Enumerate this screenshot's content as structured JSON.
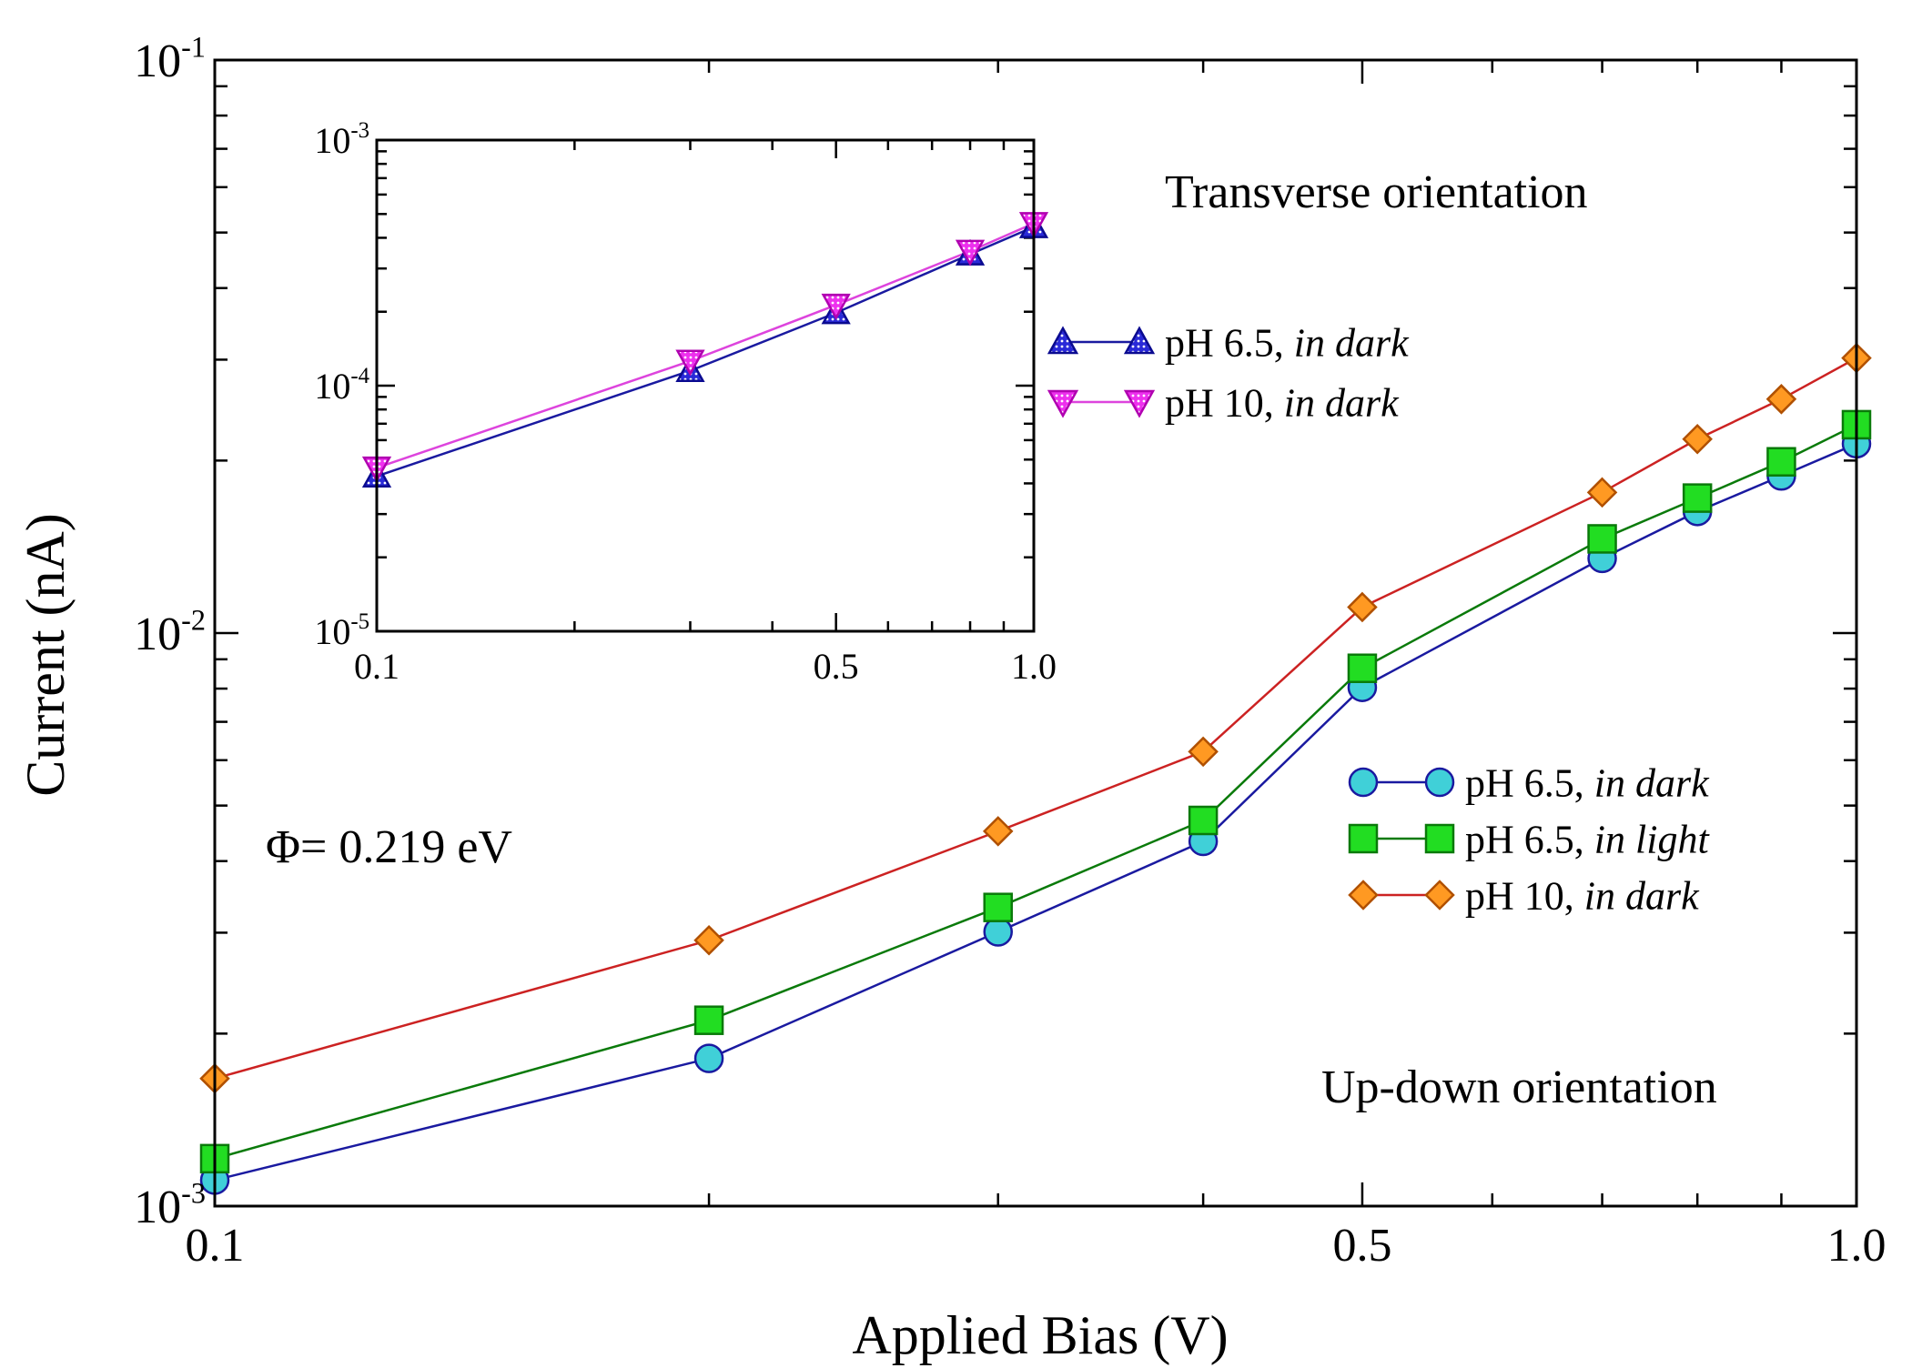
{
  "chart_data": [
    {
      "id": "main",
      "type": "line",
      "xscale": "log",
      "yscale": "log",
      "xlim": [
        0.1,
        1.0
      ],
      "ylim": [
        0.001,
        0.1
      ],
      "xlabel": "Applied Bias (V)",
      "ylabel": "Current (nA)",
      "xticks": [
        {
          "value": 0.1,
          "label": "0.1"
        },
        {
          "value": 0.5,
          "label": "0.5"
        },
        {
          "value": 1.0,
          "label": "1.0"
        }
      ],
      "yticks": [
        {
          "value": 0.001,
          "base": "10",
          "exp": "-3"
        },
        {
          "value": 0.01,
          "base": "10",
          "exp": "-2"
        },
        {
          "value": 0.1,
          "base": "10",
          "exp": "-1"
        }
      ],
      "series": [
        {
          "name": "pH 6.5, in dark",
          "label_plain": "pH 6.5, ",
          "label_italic": "in dark",
          "marker": "circle",
          "fill": "#40d0d8",
          "stroke": "#1a1aa0",
          "line": "#1a1aa0",
          "x": [
            0.1,
            0.2,
            0.3,
            0.4,
            0.5,
            0.7,
            0.8,
            0.9,
            1.0
          ],
          "y": [
            0.00111,
            0.00181,
            0.00301,
            0.00433,
            0.00804,
            0.0135,
            0.0163,
            0.0188,
            0.0214
          ]
        },
        {
          "name": "pH 6.5, in light",
          "label_plain": "pH 6.5, ",
          "label_italic": "in light",
          "marker": "square",
          "fill": "#22dd22",
          "stroke": "#0a7a0a",
          "line": "#0a7a0a",
          "x": [
            0.1,
            0.2,
            0.3,
            0.4,
            0.5,
            0.7,
            0.8,
            0.9,
            1.0
          ],
          "y": [
            0.00121,
            0.00211,
            0.00332,
            0.00471,
            0.00868,
            0.0146,
            0.0172,
            0.0199,
            0.0231
          ]
        },
        {
          "name": "pH 10, in dark",
          "label_plain": "pH 10,  ",
          "label_italic": "in dark",
          "marker": "diamond",
          "fill": "#ff9922",
          "stroke": "#b05000",
          "line": "#cc2222",
          "x": [
            0.1,
            0.2,
            0.3,
            0.4,
            0.5,
            0.7,
            0.8,
            0.9,
            1.0
          ],
          "y": [
            0.00167,
            0.00291,
            0.00451,
            0.00621,
            0.0111,
            0.0176,
            0.0218,
            0.0256,
            0.0302
          ]
        }
      ],
      "annotations": [
        {
          "key": "transverse",
          "text": "Transverse orientation"
        },
        {
          "key": "updown",
          "text": "Up-down orientation"
        },
        {
          "key": "phi",
          "text": "Φ= 0.219 eV"
        }
      ]
    },
    {
      "id": "inset",
      "type": "line",
      "xscale": "log",
      "yscale": "log",
      "xlim": [
        0.1,
        1.0
      ],
      "ylim": [
        1e-05,
        0.001
      ],
      "xticks": [
        {
          "value": 0.1,
          "label": "0.1"
        },
        {
          "value": 0.5,
          "label": "0.5"
        },
        {
          "value": 1.0,
          "label": "1.0"
        }
      ],
      "yticks": [
        {
          "value": 1e-05,
          "base": "10",
          "exp": "-5"
        },
        {
          "value": 0.0001,
          "base": "10",
          "exp": "-4"
        },
        {
          "value": 0.001,
          "base": "10",
          "exp": "-3"
        }
      ],
      "series": [
        {
          "name": "pH 6.5, in dark",
          "label_plain": "pH 6.5, ",
          "label_italic": "in dark",
          "marker": "triangle-up",
          "fill": "#2a2ad8",
          "stroke": "#0a0a90",
          "line": "#1a1aa0",
          "x": [
            0.1,
            0.3,
            0.5,
            0.8,
            1.0
          ],
          "y": [
            4.28e-05,
            0.000115,
            0.000198,
            0.000343,
            0.000443
          ]
        },
        {
          "name": "pH 10, in dark",
          "label_plain": "pH 10,  ",
          "label_italic": "in dark",
          "marker": "triangle-down",
          "fill": "#ee30ee",
          "stroke": "#b000b0",
          "line": "#dd44dd",
          "x": [
            0.1,
            0.3,
            0.5,
            0.8,
            1.0
          ],
          "y": [
            4.63e-05,
            0.000126,
            0.000213,
            0.000353,
            0.000458
          ]
        }
      ]
    }
  ]
}
